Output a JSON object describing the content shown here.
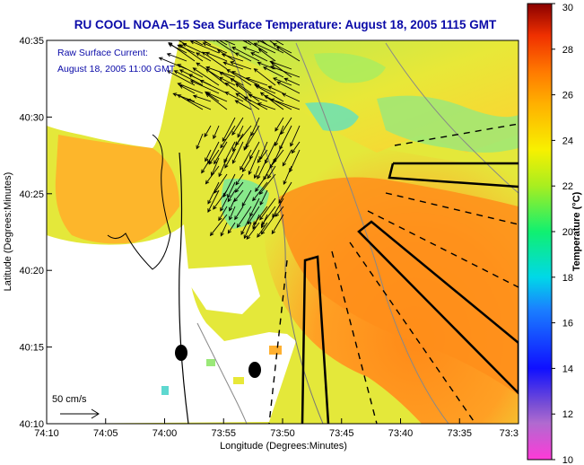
{
  "chart_data": {
    "type": "heatmap",
    "title": "RU COOL  NOAA−15  Sea Surface Temperature:  August 18, 2005 1115 GMT",
    "xlabel": "Longitude (Degrees:Minutes)",
    "ylabel": "Latitude (Degrees:Minutes)",
    "x_ticks": [
      "74:10",
      "74:05",
      "74:00",
      "73:55",
      "73:50",
      "73:45",
      "73:40",
      "73:35",
      "73:3"
    ],
    "y_ticks": [
      "40:10",
      "40:15",
      "40:20",
      "40:25",
      "40:30",
      "40:35"
    ],
    "xlim_minutes_west": [
      10,
      30
    ],
    "ylim_minutes_north": [
      10,
      35
    ],
    "colorbar": {
      "label": "Temperature (°C)",
      "ticks": [
        "10",
        "12",
        "14",
        "16",
        "18",
        "20",
        "22",
        "24",
        "26",
        "28",
        "30"
      ],
      "range": [
        10,
        30
      ]
    },
    "annotations": {
      "current_title": "Raw Surface Current:",
      "current_time": "August 18, 2005 11:00 GMT",
      "scale_label": "50 cm/s"
    },
    "temperature_regions": [
      {
        "name": "cool-offshore-north",
        "temp_c": 21
      },
      {
        "name": "warm-plume",
        "temp_c": 25
      },
      {
        "name": "warm-nearshore",
        "temp_c": 24
      }
    ]
  },
  "colors": {
    "title": "#0a0aa8",
    "background": "#ffffff"
  }
}
